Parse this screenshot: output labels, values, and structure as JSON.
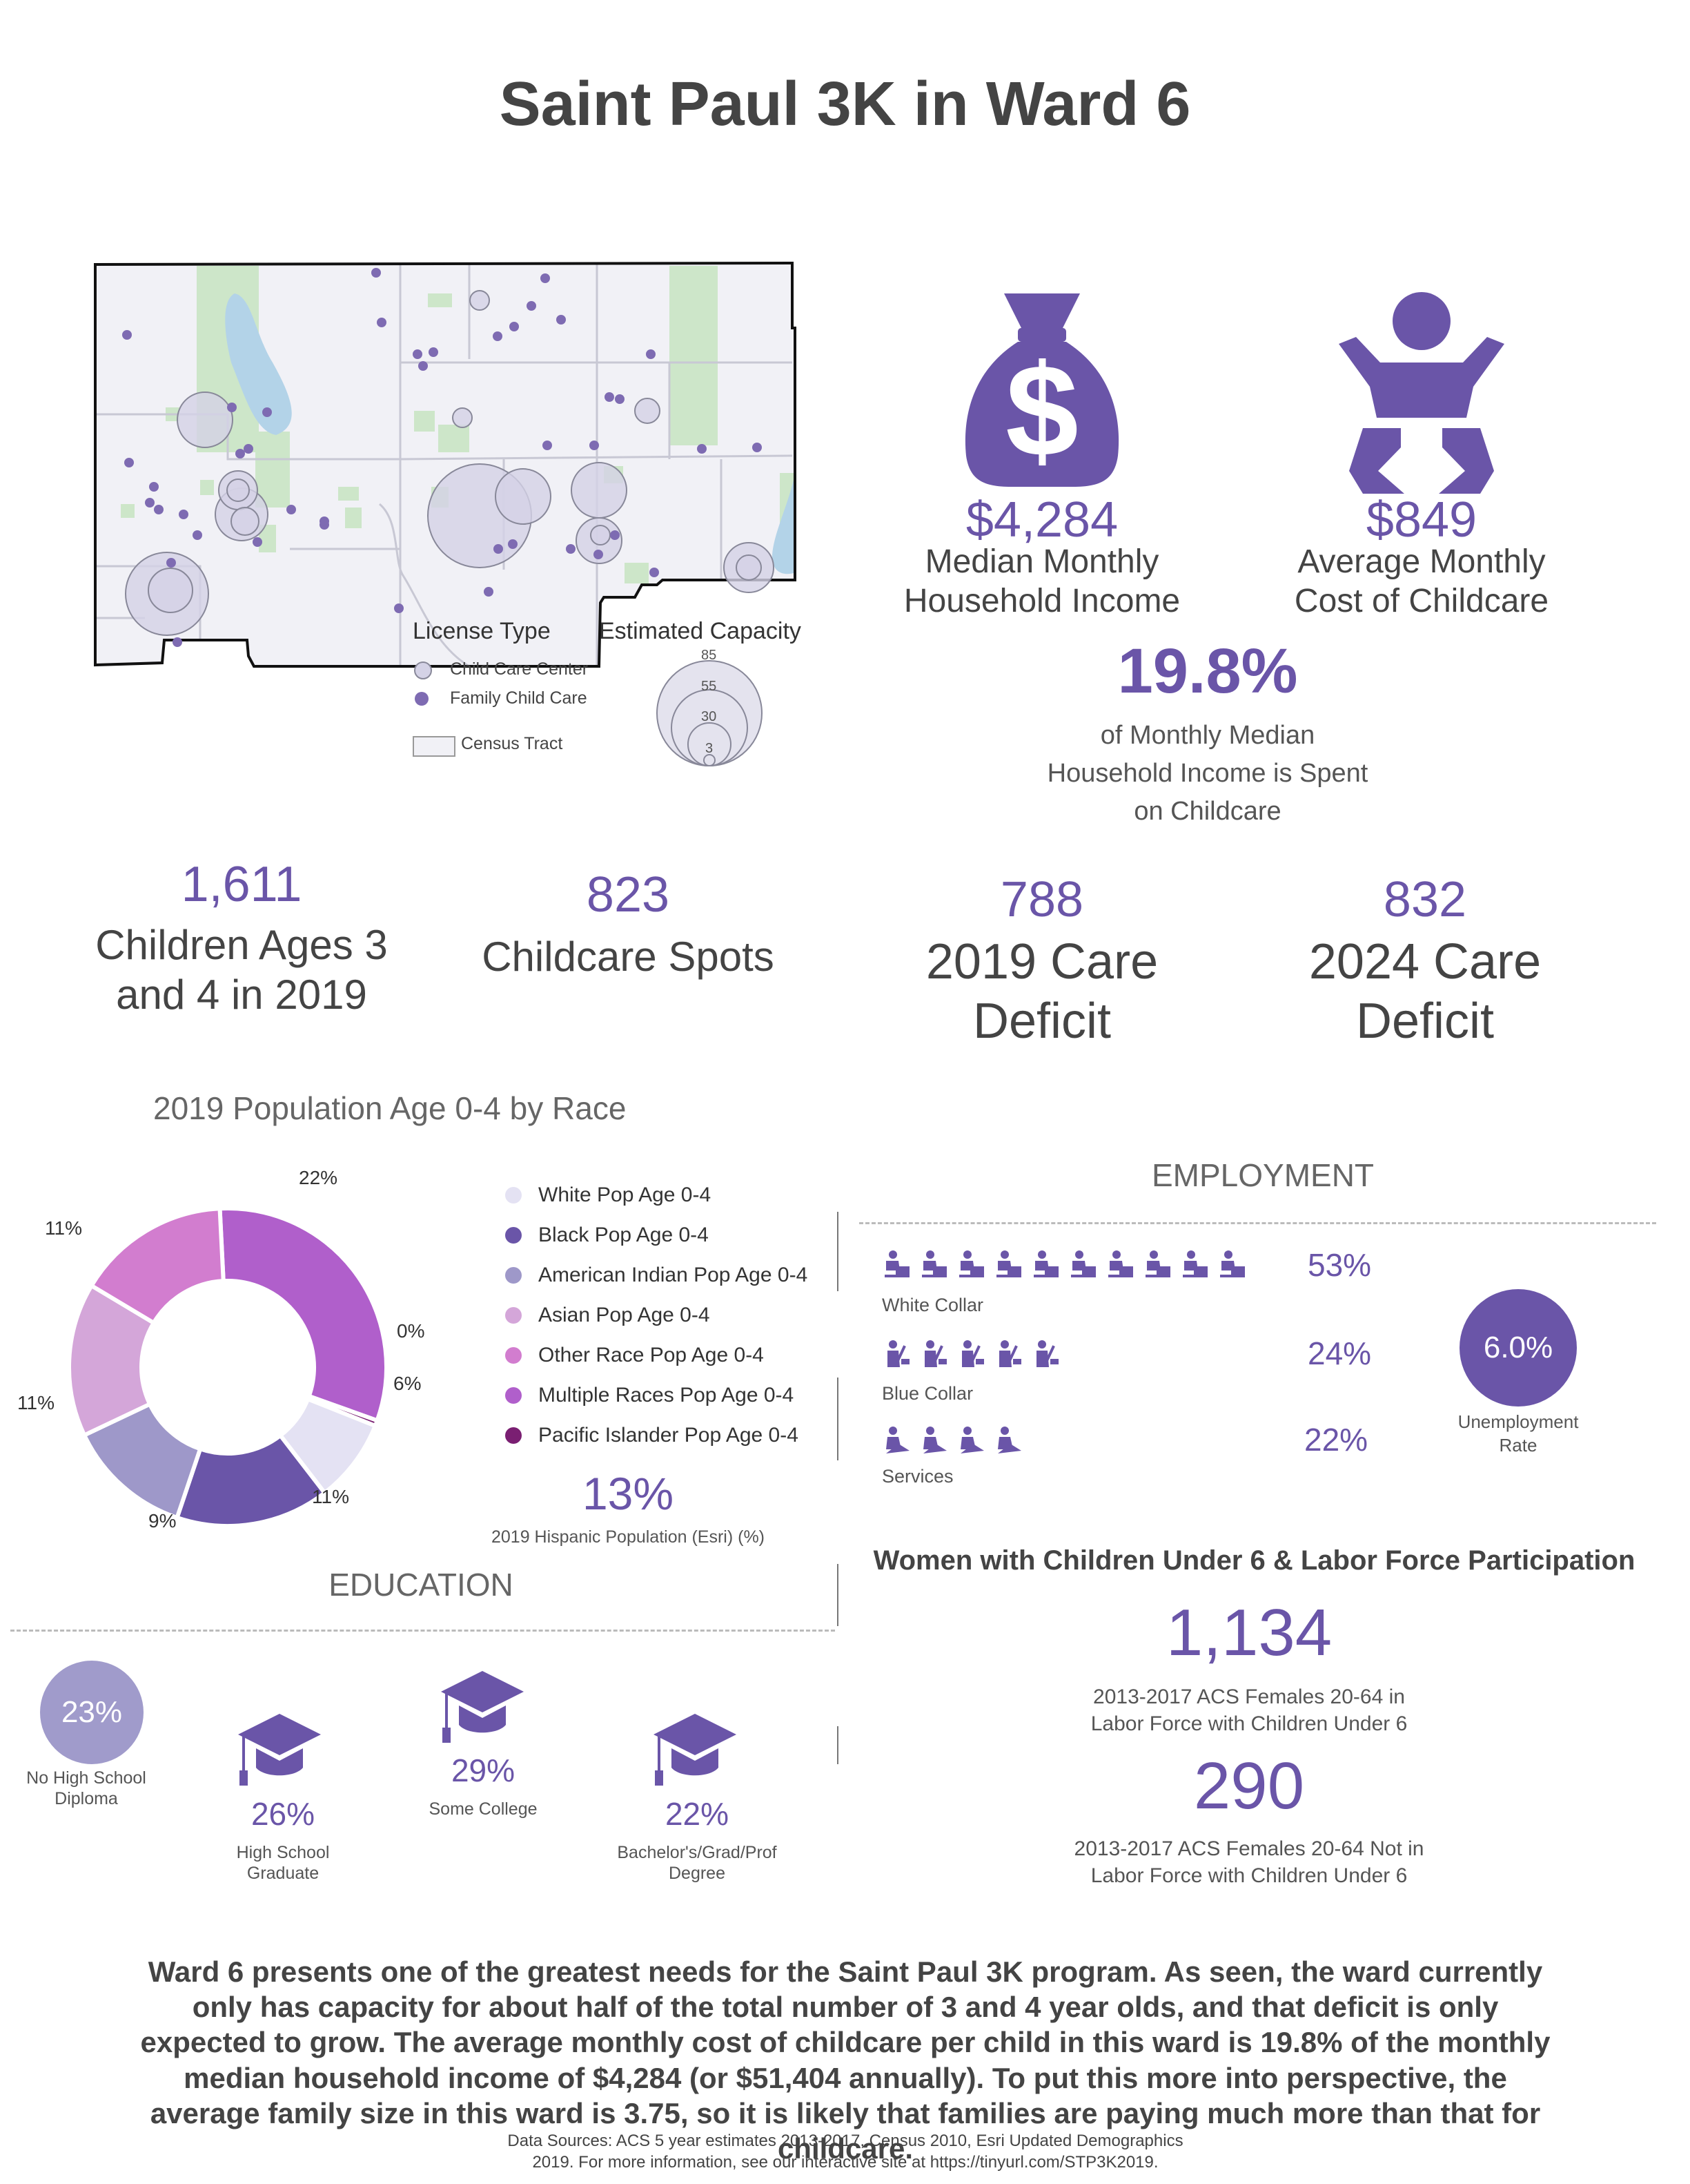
{
  "title": "Saint Paul 3K in Ward 6",
  "map": {
    "legend_license_title": "License Type",
    "legend_center": "Child Care Center",
    "legend_family": "Family Child Care",
    "legend_tract": "Census Tract",
    "legend_capacity_title": "Estimated Capacity",
    "capacity_values": [
      "85",
      "55",
      "30",
      "3"
    ],
    "colors": {
      "center_fill": "#d4d2e6",
      "family_fill": "#7e6bb2",
      "water": "#b3d3e8",
      "park": "#cde6c9",
      "land": "#f1f1f6"
    }
  },
  "income": {
    "value": "$4,284",
    "label_line1": "Median Monthly",
    "label_line2": "Household Income",
    "icon": "money-bag-icon"
  },
  "childcare_cost": {
    "value": "$849",
    "label_line1": "Average Monthly",
    "label_line2": "Cost of Childcare",
    "icon": "baby-icon"
  },
  "share": {
    "value": "19.8%",
    "line1": "of Monthly Median",
    "line2": "Household Income is Spent",
    "line3": "on Childcare"
  },
  "stats": [
    {
      "value": "1,611",
      "line1": "Children Ages 3",
      "line2": "and 4 in 2019"
    },
    {
      "value": "823",
      "line1": "Childcare Spots",
      "line2": ""
    },
    {
      "value": "788",
      "line1": "2019 Care",
      "line2": "Deficit"
    },
    {
      "value": "832",
      "line1": "2024 Care",
      "line2": "Deficit"
    }
  ],
  "race": {
    "title": "2019 Population Age 0-4 by Race",
    "legend": [
      "White Pop Age 0-4",
      "Black Pop Age 0-4",
      "American Indian Pop Age 0-4",
      "Asian Pop Age 0-4",
      "Other Race Pop Age 0-4",
      "Multiple Races Pop Age 0-4",
      "Pacific Islander Pop Age 0-4"
    ],
    "hispanic_value": "13%",
    "hispanic_label": "2019 Hispanic Population (Esri) (%)"
  },
  "chart_data": {
    "type": "pie",
    "title": "2019 Population Age 0-4 by Race",
    "donut": true,
    "categories": [
      "White Pop Age 0-4",
      "Black Pop Age 0-4",
      "American Indian Pop Age 0-4",
      "Asian Pop Age 0-4",
      "Other Race Pop Age 0-4",
      "Multiple Races Pop Age 0-4",
      "Pacific Islander Pop Age 0-4"
    ],
    "values": [
      6,
      11,
      9,
      11,
      11,
      22,
      0.4
    ],
    "labels": [
      "6%",
      "11%",
      "9%",
      "11%",
      "11%",
      "22%",
      "0%"
    ],
    "colors": [
      "#e4e2f3",
      "#6a55a8",
      "#9e98c9",
      "#d4a6d9",
      "#d27dcf",
      "#b05fcb",
      "#7a1f72"
    ],
    "legend_position": "right"
  },
  "employment": {
    "title": "EMPLOYMENT",
    "rows": [
      {
        "label": "White Collar",
        "pct": "53%",
        "icons": 10,
        "icon": "office-worker-icon"
      },
      {
        "label": "Blue Collar",
        "pct": "24%",
        "icons": 5,
        "icon": "laborer-icon"
      },
      {
        "label": "Services",
        "pct": "22%",
        "icons": 4,
        "icon": "service-worker-icon"
      }
    ],
    "unemployment_value": "6.0%",
    "unemployment_line1": "Unemployment",
    "unemployment_line2": "Rate"
  },
  "women": {
    "title": "Women with Children Under 6 & Labor Force Participation",
    "in_value": "1,134",
    "in_line1": "2013-2017 ACS Females 20-64 in",
    "in_line2": "Labor Force with Children Under 6",
    "out_value": "290",
    "out_line1": "2013-2017 ACS Females 20-64 Not in",
    "out_line2": "Labor Force with Children Under 6"
  },
  "education": {
    "title": "EDUCATION",
    "no_hs_value": "23%",
    "no_hs_line1": "No High School",
    "no_hs_line2": "Diploma",
    "items": [
      {
        "value": "26%",
        "line1": "High School",
        "line2": "Graduate"
      },
      {
        "value": "29%",
        "line1": "Some College",
        "line2": ""
      },
      {
        "value": "22%",
        "line1": "Bachelor's/Grad/Prof",
        "line2": "Degree"
      }
    ]
  },
  "summary": "Ward 6 presents one of the greatest needs for the Saint Paul 3K program. As seen, the ward currently only has capacity for about half of the total number of 3 and 4 year olds, and that deficit is only expected to grow. The average monthly cost of childcare per child in this ward is 19.8% of the monthly median household income of $4,284 (or $51,404 annually). To put this more into perspective, the average family size in this ward is 3.75, so it is likely that families are paying much more than that for childcare.",
  "sources_line1": "Data Sources: ACS 5 year estimates 2013-2017, Census 2010, Esri Updated Demographics",
  "sources_line2": "2019. For more information, see our interactive site at https://tinyurl.com/STP3K2019."
}
